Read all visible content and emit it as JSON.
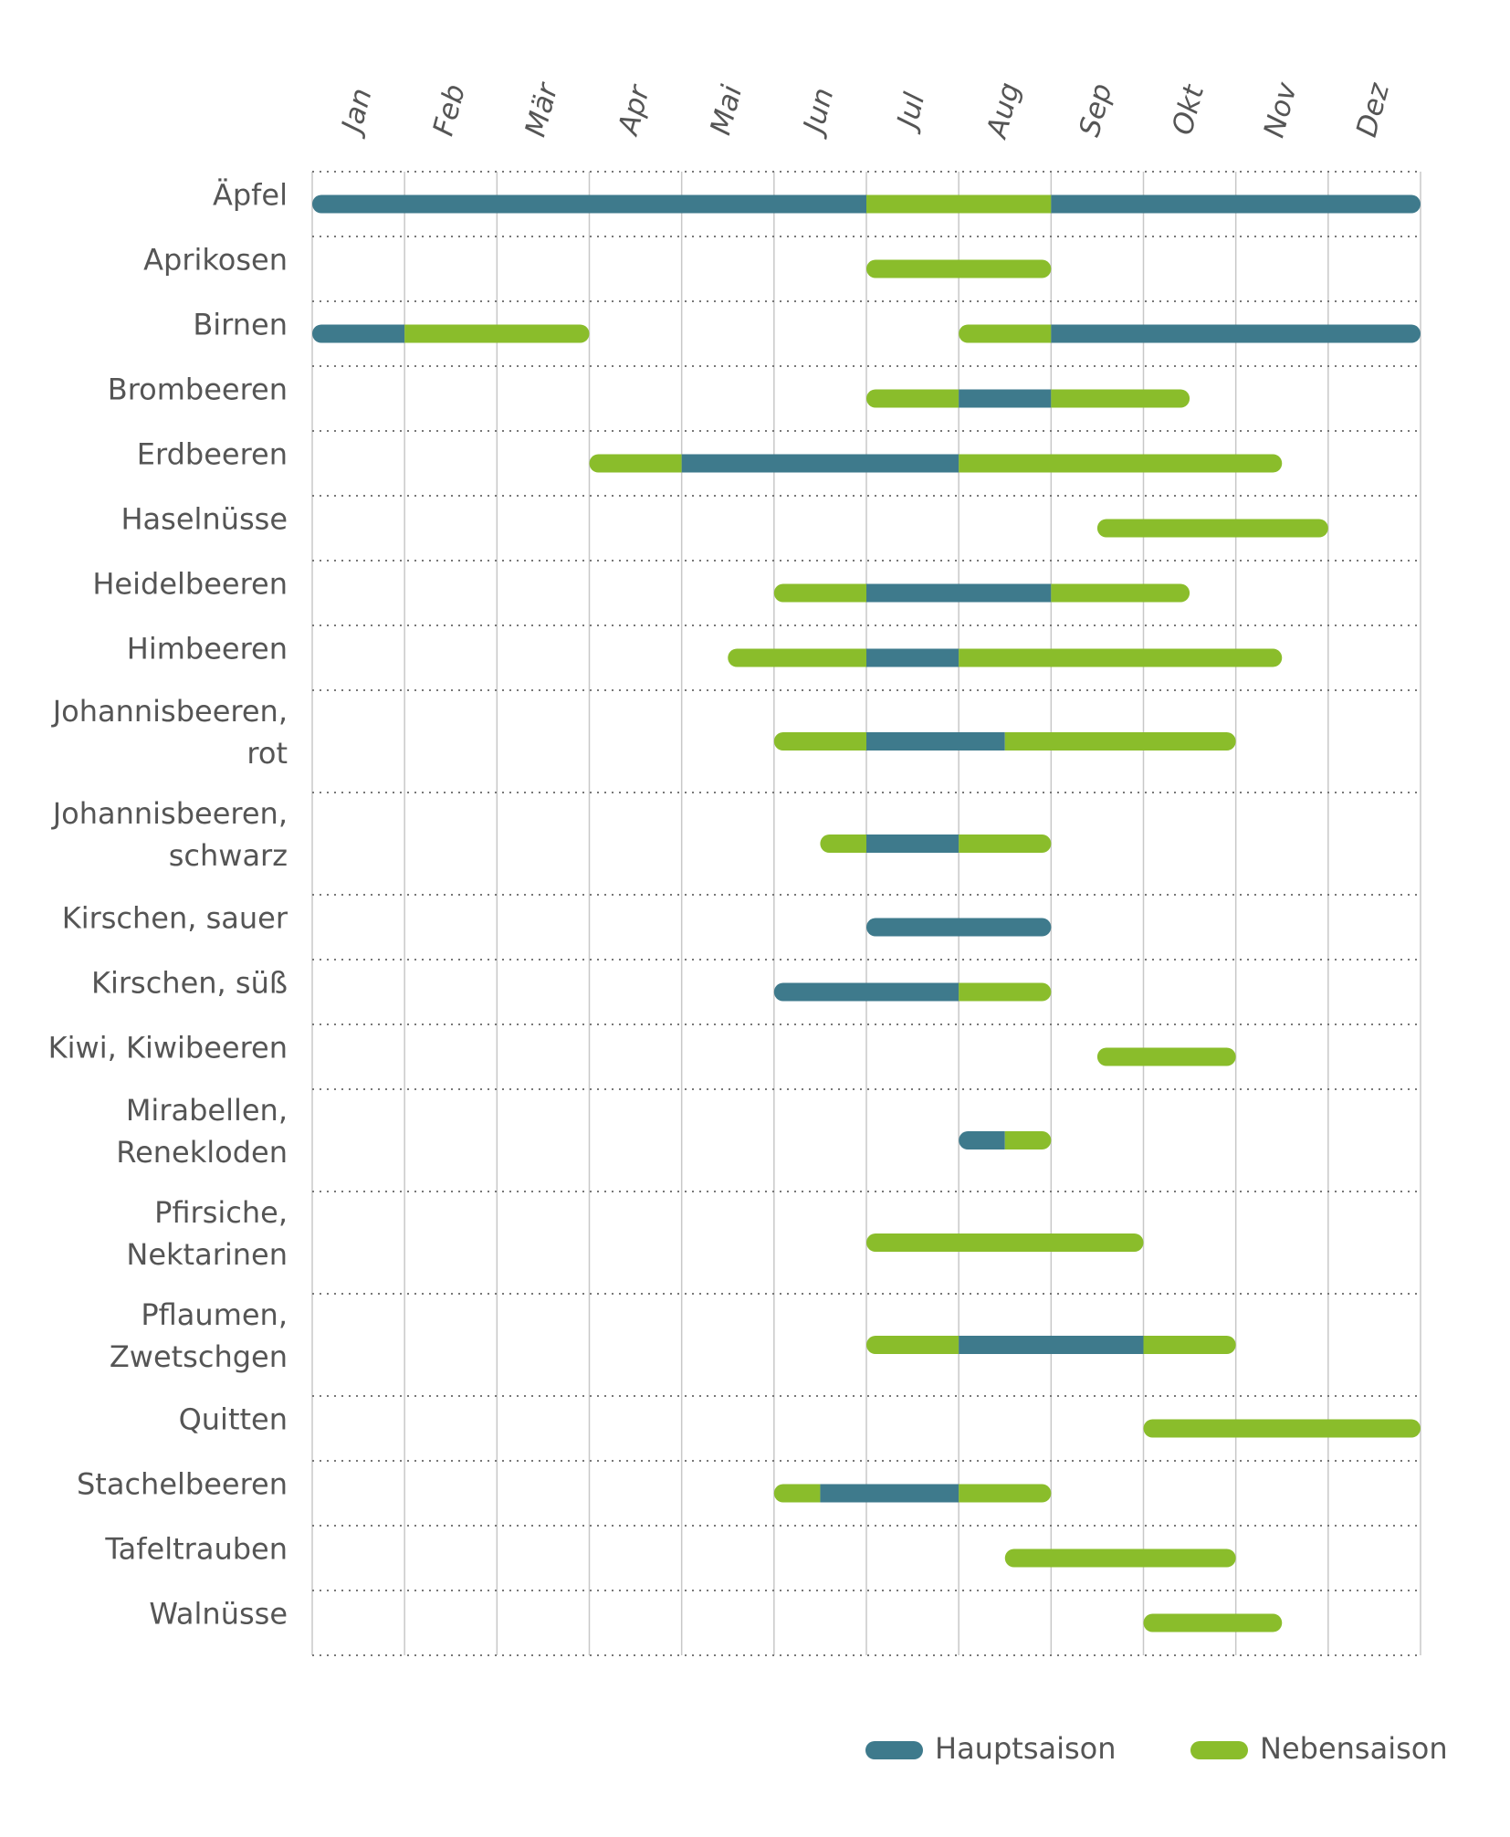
{
  "chart_data": {
    "type": "gantt",
    "categories": [
      "Jan",
      "Feb",
      "Mär",
      "Apr",
      "Mai",
      "Jun",
      "Jul",
      "Aug",
      "Sep",
      "Okt",
      "Nov",
      "Dez"
    ],
    "xlim": [
      0,
      12
    ],
    "series": [
      {
        "name": "Hauptsaison",
        "color": "#3e7a8c"
      },
      {
        "name": "Nebensaison",
        "color": "#8abd2b"
      }
    ],
    "rows": [
      {
        "label": [
          "Äpfel"
        ],
        "segments": [
          {
            "start": 0,
            "end": 6,
            "series": 0
          },
          {
            "start": 6,
            "end": 8,
            "series": 1
          },
          {
            "start": 8,
            "end": 12,
            "series": 0
          }
        ]
      },
      {
        "label": [
          "Aprikosen"
        ],
        "segments": [
          {
            "start": 6,
            "end": 8,
            "series": 1
          }
        ]
      },
      {
        "label": [
          "Birnen"
        ],
        "segments": [
          {
            "start": 0,
            "end": 1,
            "series": 0
          },
          {
            "start": 1,
            "end": 3,
            "series": 1
          },
          {
            "start": 7,
            "end": 8,
            "series": 1
          },
          {
            "start": 8,
            "end": 12,
            "series": 0
          }
        ]
      },
      {
        "label": [
          "Brombeeren"
        ],
        "segments": [
          {
            "start": 6,
            "end": 7,
            "series": 1
          },
          {
            "start": 7,
            "end": 8,
            "series": 0
          },
          {
            "start": 8,
            "end": 9.5,
            "series": 1
          }
        ]
      },
      {
        "label": [
          "Erdbeeren"
        ],
        "segments": [
          {
            "start": 3,
            "end": 4,
            "series": 1
          },
          {
            "start": 4,
            "end": 7,
            "series": 0
          },
          {
            "start": 7,
            "end": 10.5,
            "series": 1
          }
        ]
      },
      {
        "label": [
          "Haselnüsse"
        ],
        "segments": [
          {
            "start": 8.5,
            "end": 11,
            "series": 1
          }
        ]
      },
      {
        "label": [
          "Heidelbeeren"
        ],
        "segments": [
          {
            "start": 5,
            "end": 6,
            "series": 1
          },
          {
            "start": 6,
            "end": 8,
            "series": 0
          },
          {
            "start": 8,
            "end": 9.5,
            "series": 1
          }
        ]
      },
      {
        "label": [
          "Himbeeren"
        ],
        "segments": [
          {
            "start": 4.5,
            "end": 6,
            "series": 1
          },
          {
            "start": 6,
            "end": 7,
            "series": 0
          },
          {
            "start": 7,
            "end": 10.5,
            "series": 1
          }
        ]
      },
      {
        "label": [
          "Johannisbeeren,",
          "rot"
        ],
        "segments": [
          {
            "start": 5,
            "end": 6,
            "series": 1
          },
          {
            "start": 6,
            "end": 7.5,
            "series": 0
          },
          {
            "start": 7.5,
            "end": 10,
            "series": 1
          }
        ]
      },
      {
        "label": [
          "Johannisbeeren,",
          "schwarz"
        ],
        "segments": [
          {
            "start": 5.5,
            "end": 6,
            "series": 1
          },
          {
            "start": 6,
            "end": 7,
            "series": 0
          },
          {
            "start": 7,
            "end": 8,
            "series": 1
          }
        ]
      },
      {
        "label": [
          "Kirschen, sauer"
        ],
        "segments": [
          {
            "start": 6,
            "end": 8,
            "series": 0
          }
        ]
      },
      {
        "label": [
          "Kirschen, süß"
        ],
        "segments": [
          {
            "start": 5,
            "end": 7,
            "series": 0
          },
          {
            "start": 7,
            "end": 8,
            "series": 1
          }
        ]
      },
      {
        "label": [
          "Kiwi, Kiwibeeren"
        ],
        "segments": [
          {
            "start": 8.5,
            "end": 10,
            "series": 1
          }
        ]
      },
      {
        "label": [
          "Mirabellen,",
          "Renekloden"
        ],
        "segments": [
          {
            "start": 7,
            "end": 7.5,
            "series": 0
          },
          {
            "start": 7.5,
            "end": 8,
            "series": 1
          }
        ]
      },
      {
        "label": [
          "Pfirsiche,",
          "Nektarinen"
        ],
        "segments": [
          {
            "start": 6,
            "end": 9,
            "series": 1
          }
        ]
      },
      {
        "label": [
          "Pflaumen,",
          "Zwetschgen"
        ],
        "segments": [
          {
            "start": 6,
            "end": 7,
            "series": 1
          },
          {
            "start": 7,
            "end": 9,
            "series": 0
          },
          {
            "start": 9,
            "end": 10,
            "series": 1
          }
        ]
      },
      {
        "label": [
          "Quitten"
        ],
        "segments": [
          {
            "start": 9,
            "end": 12,
            "series": 1
          }
        ]
      },
      {
        "label": [
          "Stachelbeeren"
        ],
        "segments": [
          {
            "start": 5,
            "end": 5.5,
            "series": 1
          },
          {
            "start": 5.5,
            "end": 7,
            "series": 0
          },
          {
            "start": 7,
            "end": 8,
            "series": 1
          }
        ]
      },
      {
        "label": [
          "Tafeltrauben"
        ],
        "segments": [
          {
            "start": 7.5,
            "end": 10,
            "series": 1
          }
        ]
      },
      {
        "label": [
          "Walnüsse"
        ],
        "segments": [
          {
            "start": 9,
            "end": 10.5,
            "series": 1
          }
        ]
      }
    ]
  }
}
